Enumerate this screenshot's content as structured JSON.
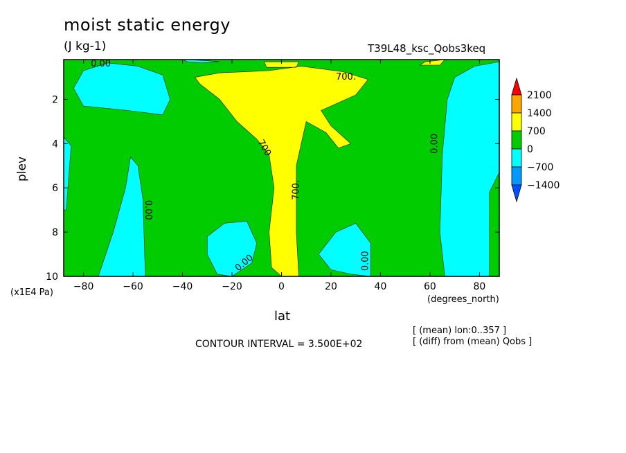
{
  "chart_data": {
    "type": "contour",
    "title": "moist static energy",
    "units": "(J kg-1)",
    "run_label": "T39L48_ksc_Qobs3keq",
    "xlabel": "lat",
    "x_units": "(degrees_north)",
    "ylabel": "plev",
    "y_units": "(x1E4 Pa)",
    "xlim": [
      -88,
      88
    ],
    "ylim": [
      10,
      0.2
    ],
    "x_ticks": [
      -80,
      -60,
      -40,
      -20,
      0,
      20,
      40,
      60,
      80
    ],
    "y_ticks": [
      2,
      4,
      6,
      8,
      10
    ],
    "contour_interval_text": "CONTOUR INTERVAL = 3.500E+02",
    "notes": [
      "[ (mean) lon:0..357 ]",
      "[ (diff) from (mean) Qobs ]"
    ],
    "colorbar": {
      "levels": [
        2100,
        1400,
        700,
        0,
        -700,
        -1400
      ],
      "labels": [
        "2100",
        "1400",
        "700",
        "0",
        "−700",
        "−1400"
      ],
      "colors": [
        "#ff0000",
        "#ffa500",
        "#ffff00",
        "#00cc00",
        "#00ffff",
        "#0099ff",
        "#0050ff"
      ]
    },
    "contour_labels": [
      {
        "text": "0.00",
        "lat": -73,
        "plev": 0.4,
        "angle": 0
      },
      {
        "text": "700.",
        "lat": 26,
        "plev": 1.0,
        "angle": 0
      },
      {
        "text": "700",
        "lat": -7,
        "plev": 4.2,
        "angle": 60
      },
      {
        "text": "0.00",
        "lat": 62,
        "plev": 4.0,
        "angle": -90
      },
      {
        "text": "700.",
        "lat": 6,
        "plev": 6.1,
        "angle": -90
      },
      {
        "text": "0.00",
        "lat": -54,
        "plev": 7.0,
        "angle": 90
      },
      {
        "text": "0.00",
        "lat": -15,
        "plev": 9.4,
        "angle": -40
      },
      {
        "text": "0.00",
        "lat": 34,
        "plev": 9.3,
        "angle": -90
      }
    ],
    "regions": [
      {
        "level": "0 to 700",
        "color": "#00cc00",
        "points": [
          [
            -88,
            0.2
          ],
          [
            88,
            0.2
          ],
          [
            88,
            10
          ],
          [
            -88,
            10
          ]
        ]
      },
      {
        "level": "700 to 1400",
        "color": "#ffff00",
        "points": [
          [
            -35,
            1.0
          ],
          [
            -25,
            0.8
          ],
          [
            -5,
            0.7
          ],
          [
            8,
            0.5
          ],
          [
            25,
            0.75
          ],
          [
            35,
            1.1
          ],
          [
            30,
            1.8
          ],
          [
            22,
            2.2
          ],
          [
            16,
            2.5
          ],
          [
            20,
            3.2
          ],
          [
            28,
            4.0
          ],
          [
            23,
            4.2
          ],
          [
            18,
            3.5
          ],
          [
            10,
            3.0
          ],
          [
            6,
            5.0
          ],
          [
            6,
            8.0
          ],
          [
            7,
            10
          ],
          [
            0,
            10
          ],
          [
            -4,
            9.6
          ],
          [
            -5,
            8.0
          ],
          [
            -3,
            6.0
          ],
          [
            -5,
            4.5
          ],
          [
            -10,
            3.8
          ],
          [
            -18,
            3.0
          ],
          [
            -25,
            2.0
          ],
          [
            -33,
            1.3
          ]
        ]
      },
      {
        "level": "700 to 1400",
        "color": "#ffff00",
        "points": [
          [
            -7,
            0.3
          ],
          [
            7,
            0.3
          ],
          [
            6,
            0.55
          ],
          [
            -6,
            0.55
          ]
        ]
      },
      {
        "level": "700 to 1400",
        "color": "#ffff00",
        "points": [
          [
            58,
            0.3
          ],
          [
            66,
            0.2
          ],
          [
            64,
            0.45
          ],
          [
            56,
            0.45
          ]
        ]
      },
      {
        "level": "-700 to 0",
        "color": "#00ffff",
        "points": [
          [
            -80,
            0.7
          ],
          [
            -70,
            0.35
          ],
          [
            -58,
            0.5
          ],
          [
            -48,
            0.9
          ],
          [
            -45,
            2.0
          ],
          [
            -48,
            2.7
          ],
          [
            -62,
            2.5
          ],
          [
            -80,
            2.3
          ],
          [
            -84,
            1.5
          ]
        ]
      },
      {
        "level": "-700 to 0",
        "color": "#00ffff",
        "points": [
          [
            -88,
            3.7
          ],
          [
            -85,
            4.1
          ],
          [
            -87,
            7.0
          ],
          [
            -88,
            7.0
          ]
        ]
      },
      {
        "level": "-700 to 0",
        "color": "#00ffff",
        "points": [
          [
            -74,
            10
          ],
          [
            -68,
            8.0
          ],
          [
            -63,
            6.0
          ],
          [
            -61,
            4.6
          ],
          [
            -58,
            5.0
          ],
          [
            -56,
            6.5
          ],
          [
            -55,
            10
          ]
        ]
      },
      {
        "level": "-700 to 0",
        "color": "#00ffff",
        "points": [
          [
            -30,
            8.2
          ],
          [
            -23,
            7.6
          ],
          [
            -14,
            7.5
          ],
          [
            -10,
            8.5
          ],
          [
            -12,
            9.4
          ],
          [
            -20,
            10
          ],
          [
            -26,
            9.9
          ],
          [
            -30,
            9.0
          ]
        ]
      },
      {
        "level": "-700 to 0",
        "color": "#00ffff",
        "points": [
          [
            15,
            9.0
          ],
          [
            22,
            8.0
          ],
          [
            30,
            7.6
          ],
          [
            36,
            8.5
          ],
          [
            36,
            10
          ],
          [
            28,
            9.9
          ],
          [
            20,
            9.7
          ]
        ]
      },
      {
        "level": "-700 to 0",
        "color": "#00ffff",
        "points": [
          [
            66,
            10
          ],
          [
            64,
            8.0
          ],
          [
            65,
            4.5
          ],
          [
            67,
            2.0
          ],
          [
            70,
            1.0
          ],
          [
            78,
            0.5
          ],
          [
            88,
            0.3
          ],
          [
            88,
            5.3
          ],
          [
            84,
            6.2
          ],
          [
            84,
            10
          ]
        ]
      },
      {
        "level": "-700 to 0",
        "color": "#00ffff",
        "points": [
          [
            -40,
            0.2
          ],
          [
            -30,
            0.25
          ],
          [
            -25,
            0.3
          ],
          [
            -32,
            0.35
          ],
          [
            -38,
            0.3
          ]
        ]
      }
    ]
  }
}
